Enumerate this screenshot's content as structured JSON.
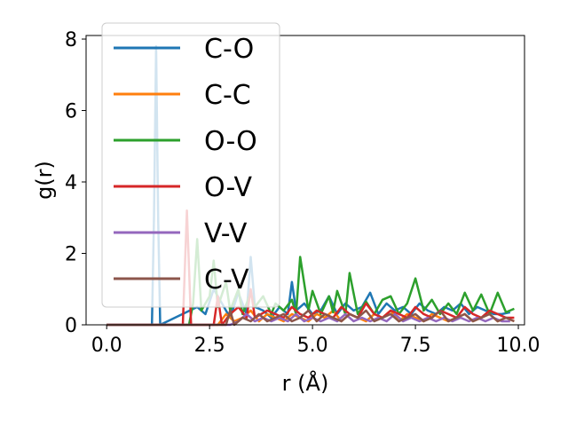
{
  "chart_data": {
    "type": "line",
    "xlabel": "r (Å)",
    "ylabel": "g(r)",
    "xlim": [
      -0.5,
      10.15
    ],
    "ylim": [
      0,
      8.1
    ],
    "xticks": [
      0.0,
      2.5,
      5.0,
      7.5,
      10.0
    ],
    "xtick_labels": [
      "0.0",
      "2.5",
      "5.0",
      "7.5",
      "10.0"
    ],
    "yticks": [
      0,
      2,
      4,
      6,
      8
    ],
    "ytick_labels": [
      "0",
      "2",
      "4",
      "6",
      "8"
    ],
    "grid": false,
    "legend_position": "upper-left",
    "series": [
      {
        "name": "C-O",
        "color": "#1f77b4",
        "x": [
          0.0,
          1.1,
          1.15,
          1.2,
          1.25,
          1.3,
          2.2,
          2.4,
          2.6,
          2.8,
          3.0,
          3.2,
          3.4,
          3.5,
          3.6,
          3.8,
          4.0,
          4.2,
          4.4,
          4.5,
          4.6,
          4.8,
          5.0,
          5.2,
          5.4,
          5.6,
          5.8,
          6.0,
          6.2,
          6.4,
          6.6,
          6.8,
          7.0,
          7.2,
          7.4,
          7.6,
          7.8,
          8.0,
          8.2,
          8.4,
          8.6,
          8.8,
          9.0,
          9.2,
          9.4,
          9.6,
          9.8
        ],
        "y": [
          0,
          0,
          3.0,
          7.8,
          3.0,
          0,
          0.5,
          0.3,
          1.0,
          0.6,
          0.2,
          0.9,
          0.3,
          1.9,
          0.5,
          0.4,
          0.2,
          0.5,
          0.3,
          1.2,
          0.4,
          0.6,
          0.3,
          0.4,
          0.8,
          0.3,
          0.6,
          0.4,
          0.5,
          0.9,
          0.3,
          0.6,
          0.4,
          0.5,
          0.3,
          0.6,
          0.4,
          0.3,
          0.5,
          0.4,
          0.6,
          0.3,
          0.5,
          0.4,
          0.3,
          0.3,
          0.35
        ]
      },
      {
        "name": "C-C",
        "color": "#ff7f0e",
        "x": [
          0.0,
          2.7,
          2.9,
          3.1,
          3.3,
          3.5,
          3.7,
          3.9,
          4.1,
          4.3,
          4.5,
          4.7,
          4.9,
          5.1,
          5.3,
          5.5,
          5.7,
          5.9,
          6.1,
          6.3,
          6.5,
          6.7,
          6.9,
          7.1,
          7.3,
          7.5,
          7.7,
          7.9,
          8.1,
          8.3,
          8.5,
          8.7,
          8.9,
          9.1,
          9.3,
          9.5,
          9.7,
          9.9
        ],
        "y": [
          0,
          0,
          0.3,
          0.1,
          0.2,
          0.4,
          0.1,
          0.3,
          0.2,
          0.1,
          0.3,
          0.2,
          0.1,
          0.3,
          0.2,
          0.4,
          0.1,
          0.3,
          0.2,
          0.1,
          0.3,
          0.2,
          0.4,
          0.1,
          0.3,
          0.2,
          0.1,
          0.3,
          0.2,
          0.1,
          0.2,
          0.3,
          0.1,
          0.2,
          0.3,
          0.1,
          0.2,
          0.1
        ]
      },
      {
        "name": "O-O",
        "color": "#2ca02c",
        "x": [
          0.0,
          2.0,
          2.1,
          2.2,
          2.3,
          2.5,
          2.6,
          2.7,
          2.9,
          3.0,
          3.2,
          3.3,
          3.5,
          3.6,
          3.8,
          4.0,
          4.1,
          4.3,
          4.5,
          4.6,
          4.7,
          4.9,
          5.0,
          5.2,
          5.4,
          5.5,
          5.6,
          5.8,
          5.9,
          6.1,
          6.3,
          6.5,
          6.7,
          6.9,
          7.1,
          7.3,
          7.5,
          7.7,
          7.9,
          8.1,
          8.3,
          8.5,
          8.7,
          8.9,
          9.1,
          9.3,
          9.5,
          9.7,
          9.9
        ],
        "y": [
          0,
          0,
          0.6,
          2.4,
          0.4,
          0.8,
          1.8,
          0.5,
          1.2,
          0.4,
          1.0,
          0.3,
          0.9,
          0.5,
          0.8,
          0.3,
          0.6,
          0.4,
          0.7,
          0.3,
          1.9,
          0.4,
          0.95,
          0.3,
          0.8,
          0.35,
          0.95,
          0.3,
          1.45,
          0.3,
          0.65,
          0.3,
          0.7,
          0.8,
          0.3,
          0.6,
          1.3,
          0.4,
          0.7,
          0.3,
          0.6,
          0.3,
          0.9,
          0.4,
          0.85,
          0.3,
          0.9,
          0.35,
          0.45
        ]
      },
      {
        "name": "O-V",
        "color": "#d62728",
        "x": [
          0.0,
          1.85,
          1.95,
          2.05,
          2.6,
          2.7,
          2.8,
          3.0,
          3.2,
          3.4,
          3.5,
          3.6,
          3.9,
          4.1,
          4.3,
          4.5,
          4.7,
          4.9,
          5.1,
          5.3,
          5.5,
          5.7,
          5.9,
          6.1,
          6.3,
          6.5,
          6.7,
          6.9,
          7.1,
          7.3,
          7.5,
          7.7,
          7.9,
          8.1,
          8.3,
          8.5,
          8.7,
          8.9,
          9.1,
          9.3,
          9.5,
          9.7,
          9.9
        ],
        "y": [
          0,
          0,
          3.2,
          0,
          0,
          0.8,
          0,
          0.3,
          0.5,
          0.2,
          1.0,
          0.2,
          0.4,
          0.3,
          0.2,
          0.5,
          0.3,
          0.2,
          0.4,
          0.3,
          0.2,
          0.5,
          0.3,
          0.2,
          0.6,
          0.3,
          0.2,
          0.4,
          0.3,
          0.2,
          0.5,
          0.3,
          0.2,
          0.4,
          0.3,
          0.2,
          0.5,
          0.3,
          0.2,
          0.4,
          0.3,
          0.2,
          0.2
        ]
      },
      {
        "name": "V-V",
        "color": "#9467bd",
        "x": [
          0.0,
          3.0,
          3.2,
          3.4,
          3.6,
          3.8,
          4.0,
          4.2,
          4.4,
          4.6,
          4.8,
          5.0,
          5.2,
          5.4,
          5.6,
          5.8,
          6.0,
          6.2,
          6.4,
          6.6,
          6.8,
          7.0,
          7.2,
          7.4,
          7.6,
          7.8,
          8.0,
          8.2,
          8.4,
          8.6,
          8.8,
          9.0,
          9.2,
          9.4,
          9.6,
          9.8
        ],
        "y": [
          0,
          0,
          0.1,
          0.3,
          0.1,
          0.2,
          0.1,
          0.2,
          0.1,
          0.3,
          0.1,
          0.2,
          0.1,
          0.2,
          0.1,
          0.3,
          0.1,
          0.2,
          0.1,
          0.2,
          0.1,
          0.3,
          0.1,
          0.2,
          0.1,
          0.2,
          0.1,
          0.2,
          0.1,
          0.2,
          0.1,
          0.2,
          0.1,
          0.2,
          0.1,
          0.1
        ]
      },
      {
        "name": "C-V",
        "color": "#8c564b",
        "x": [
          0.0,
          2.9,
          3.0,
          3.1,
          3.3,
          3.5,
          3.7,
          3.9,
          4.1,
          4.3,
          4.5,
          4.7,
          4.9,
          5.1,
          5.3,
          5.5,
          5.7,
          5.9,
          6.1,
          6.3,
          6.5,
          6.7,
          6.9,
          7.1,
          7.3,
          7.5,
          7.7,
          7.9,
          8.1,
          8.3,
          8.5,
          8.7,
          8.9,
          9.1,
          9.3,
          9.5,
          9.7,
          9.9
        ],
        "y": [
          0,
          0,
          0.4,
          0,
          0.2,
          0.1,
          0.3,
          0.1,
          0.2,
          0.3,
          0.1,
          0.2,
          0.4,
          0.1,
          0.3,
          0.2,
          0.1,
          0.3,
          0.2,
          0.4,
          0.1,
          0.2,
          0.3,
          0.1,
          0.2,
          0.3,
          0.1,
          0.2,
          0.4,
          0.1,
          0.2,
          0.3,
          0.1,
          0.2,
          0.3,
          0.1,
          0.2,
          0.1
        ]
      }
    ]
  }
}
